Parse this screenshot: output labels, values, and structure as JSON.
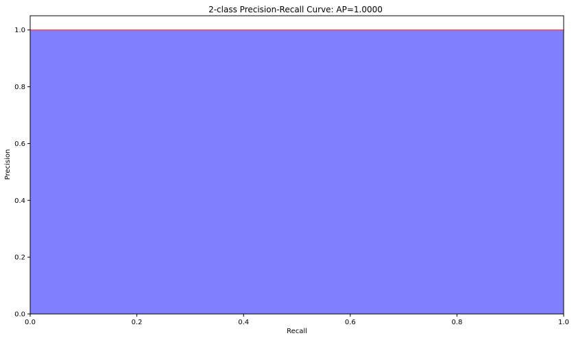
{
  "chart_data": {
    "type": "area",
    "title": "2-class Precision-Recall Curve: AP=1.0000",
    "xlabel": "Recall",
    "ylabel": "Precision",
    "xlim": [
      0.0,
      1.0
    ],
    "ylim": [
      0.0,
      1.05
    ],
    "grid": false,
    "x_ticks": [
      0.0,
      0.2,
      0.4,
      0.6,
      0.8,
      1.0
    ],
    "y_ticks": [
      0.0,
      0.2,
      0.4,
      0.6,
      0.8,
      1.0
    ],
    "x_tick_labels": [
      "0.0",
      "0.2",
      "0.4",
      "0.6",
      "0.8",
      "1.0"
    ],
    "y_tick_labels": [
      "0.0",
      "0.2",
      "0.4",
      "0.6",
      "0.8",
      "1.0"
    ],
    "series": [
      {
        "x": [
          0.0,
          1.0
        ],
        "y": [
          1.0,
          1.0
        ],
        "line_color": "#ff4d4d",
        "fill_color": "#8080ff"
      }
    ]
  }
}
